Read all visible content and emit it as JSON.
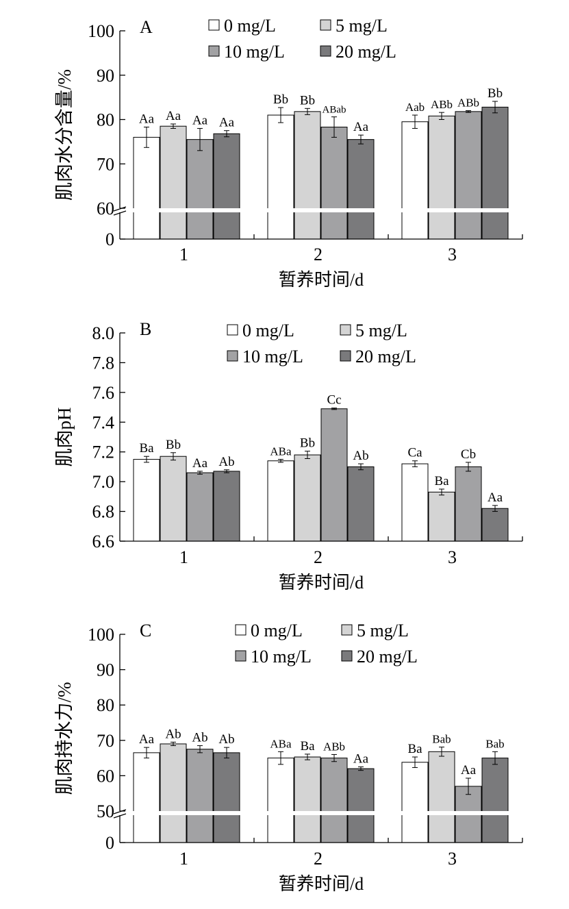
{
  "colors": {
    "series": [
      "#ffffff",
      "#d4d4d4",
      "#a2a2a4",
      "#7a7a7c"
    ],
    "stroke": "#000000"
  },
  "chart_data": [
    {
      "type": "bar",
      "panel_label": "A",
      "ylabel": "肌肉水分含量/%",
      "xlabel": "暂养时间/d",
      "categories": [
        "1",
        "2",
        "3"
      ],
      "ylim": [
        60,
        100
      ],
      "axis_break": true,
      "yticks": [
        "0",
        "60",
        "70",
        "80",
        "90",
        "100"
      ],
      "legend_placement": "top",
      "series": [
        {
          "name": "0 mg/L",
          "values": [
            76.0,
            81.0,
            79.5
          ],
          "errors": [
            2.3,
            1.7,
            1.5
          ],
          "labels": [
            "Aa",
            "Bb",
            "Aab"
          ]
        },
        {
          "name": "5 mg/L",
          "values": [
            78.5,
            81.8,
            80.8
          ],
          "errors": [
            0.5,
            0.7,
            0.8
          ],
          "labels": [
            "Aa",
            "Bb",
            "ABb"
          ]
        },
        {
          "name": "10 mg/L",
          "values": [
            75.5,
            78.3,
            81.8
          ],
          "errors": [
            2.5,
            2.3,
            0.2
          ],
          "labels": [
            "Aa",
            "ABab",
            "ABb"
          ]
        },
        {
          "name": "20 mg/L",
          "values": [
            76.8,
            75.5,
            82.8
          ],
          "errors": [
            0.7,
            1.0,
            1.3
          ],
          "labels": [
            "Aa",
            "Aa",
            "Bb"
          ]
        }
      ]
    },
    {
      "type": "bar",
      "panel_label": "B",
      "ylabel": "肌肉pH",
      "xlabel": "暂养时间/d",
      "categories": [
        "1",
        "2",
        "3"
      ],
      "ylim": [
        6.6,
        8.0
      ],
      "axis_break": false,
      "yticks": [
        "6.6",
        "6.8",
        "7.0",
        "7.2",
        "7.4",
        "7.6",
        "7.8",
        "8.0"
      ],
      "legend_placement": "top",
      "series": [
        {
          "name": "0 mg/L",
          "values": [
            7.15,
            7.14,
            7.12
          ],
          "errors": [
            0.02,
            0.01,
            0.02
          ],
          "labels": [
            "Ba",
            "ABa",
            "Ca"
          ]
        },
        {
          "name": "5 mg/L",
          "values": [
            7.17,
            7.18,
            6.93
          ],
          "errors": [
            0.025,
            0.025,
            0.02
          ],
          "labels": [
            "Bb",
            "Bb",
            "Ba"
          ]
        },
        {
          "name": "10 mg/L",
          "values": [
            7.06,
            7.49,
            7.1
          ],
          "errors": [
            0.01,
            0.005,
            0.03
          ],
          "labels": [
            "Aa",
            "Cc",
            "Cb"
          ]
        },
        {
          "name": "20 mg/L",
          "values": [
            7.07,
            7.1,
            6.82
          ],
          "errors": [
            0.01,
            0.02,
            0.02
          ],
          "labels": [
            "Ab",
            "Ab",
            "Aa"
          ]
        }
      ]
    },
    {
      "type": "bar",
      "panel_label": "C",
      "ylabel": "肌肉持水力/%",
      "xlabel": "暂养时间/d",
      "categories": [
        "1",
        "2",
        "3"
      ],
      "ylim": [
        50,
        100
      ],
      "axis_break": true,
      "yticks": [
        "0",
        "50",
        "60",
        "70",
        "80",
        "90",
        "100"
      ],
      "legend_placement": "top",
      "series": [
        {
          "name": "0 mg/L",
          "values": [
            66.5,
            65.0,
            63.8
          ],
          "errors": [
            1.5,
            1.8,
            1.5
          ],
          "labels": [
            "Aa",
            "ABa",
            "Ba"
          ]
        },
        {
          "name": "5 mg/L",
          "values": [
            69.0,
            65.3,
            66.8
          ],
          "errors": [
            0.5,
            0.8,
            1.3
          ],
          "labels": [
            "Ab",
            "Ba",
            "Bab"
          ]
        },
        {
          "name": "10 mg/L",
          "values": [
            67.5,
            65.0,
            57.0
          ],
          "errors": [
            1.0,
            1.0,
            2.3
          ],
          "labels": [
            "Ab",
            "ABb",
            "Aa"
          ]
        },
        {
          "name": "20 mg/L",
          "values": [
            66.5,
            62.0,
            65.0
          ],
          "errors": [
            1.5,
            0.5,
            1.8
          ],
          "labels": [
            "Ab",
            "Aa",
            "Bab"
          ]
        }
      ]
    }
  ]
}
